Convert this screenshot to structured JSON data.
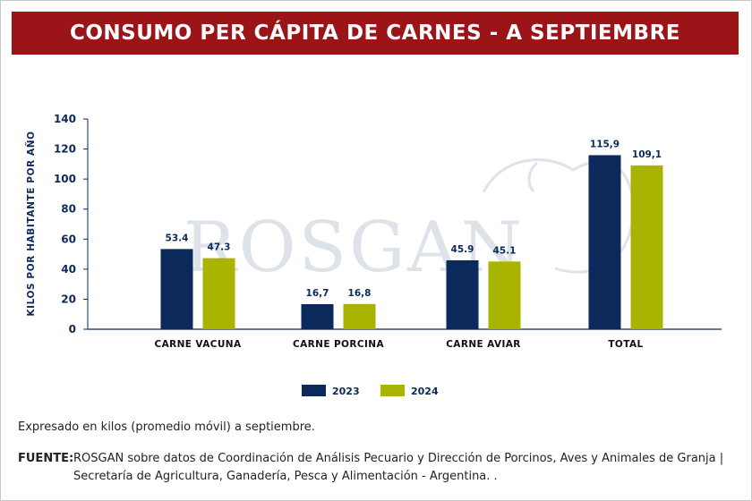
{
  "header": {
    "title": "CONSUMO PER CÁPITA DE CARNES - A SEPTIEMBRE"
  },
  "watermark": {
    "text": "ROSGAN"
  },
  "footer": {
    "note": "Expresado en kilos (promedio móvil) a septiembre.",
    "source_label": "FUENTE:",
    "source_text": "ROSGAN sobre datos de Coordinación de Análisis Pecuario y Dirección de Porcinos, Aves y Animales de Granja | Secretaría de Agricultura, Ganadería, Pesca y Alimentación - Argentina. ."
  },
  "colors": {
    "banner": "#9b1518",
    "series_2023": "#0b2a5b",
    "series_2024": "#a9b400",
    "axis": "#0b2a5b"
  },
  "chart_data": {
    "type": "bar",
    "title": "CONSUMO PER CÁPITA DE CARNES - A SEPTIEMBRE",
    "xlabel": "",
    "ylabel": "KILOS POR HABITANTE POR AÑO",
    "ylim": [
      0,
      140
    ],
    "yticks": [
      0,
      20,
      40,
      60,
      80,
      100,
      120,
      140
    ],
    "categories": [
      "CARNE VACUNA",
      "CARNE PORCINA",
      "CARNE AVIAR",
      "TOTAL"
    ],
    "series": [
      {
        "name": "2023",
        "color": "#0b2a5b",
        "values": [
          53.4,
          16.7,
          45.9,
          115.9
        ],
        "labels": [
          "53.4",
          "16,7",
          "45.9",
          "115,9"
        ]
      },
      {
        "name": "2024",
        "color": "#a9b400",
        "values": [
          47.3,
          16.8,
          45.1,
          109.1
        ],
        "labels": [
          "47.3",
          "16,8",
          "45.1",
          "109,1"
        ]
      }
    ],
    "legend_position": "bottom-center",
    "grid": false
  }
}
